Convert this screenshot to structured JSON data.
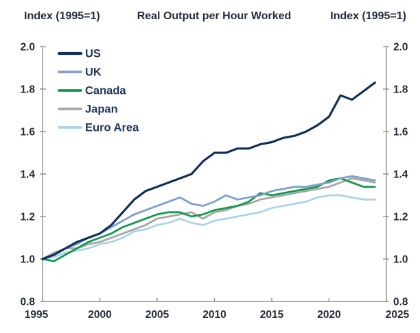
{
  "chart_data": {
    "type": "line",
    "title": "Real Output per Hour Worked",
    "index_label_left": "Index (1995=1)",
    "index_label_right": "Index (1995=1)",
    "xlim": [
      1995,
      2025
    ],
    "ylim": [
      0.8,
      2.0
    ],
    "xticks": [
      1995,
      2000,
      2005,
      2010,
      2015,
      2020,
      2025
    ],
    "yticks": [
      0.8,
      1.0,
      1.2,
      1.4,
      1.6,
      1.8,
      2.0
    ],
    "grid": false,
    "legend_position": "top-left",
    "axis_color": "#8f8f8f",
    "text_color": "#252b3a",
    "legend_text_color": "#1e355e",
    "x": [
      1995,
      1996,
      1997,
      1998,
      1999,
      2000,
      2001,
      2002,
      2003,
      2004,
      2005,
      2006,
      2007,
      2008,
      2009,
      2010,
      2011,
      2012,
      2013,
      2014,
      2015,
      2016,
      2017,
      2018,
      2019,
      2020,
      2021,
      2022,
      2023,
      2024
    ],
    "series": [
      {
        "name": "US",
        "color": "#103059",
        "line_width": 3.2,
        "values": [
          1.0,
          1.02,
          1.05,
          1.08,
          1.1,
          1.12,
          1.16,
          1.22,
          1.28,
          1.32,
          1.34,
          1.36,
          1.38,
          1.4,
          1.46,
          1.5,
          1.5,
          1.52,
          1.52,
          1.54,
          1.55,
          1.57,
          1.58,
          1.6,
          1.63,
          1.67,
          1.77,
          1.75,
          1.79,
          1.83
        ]
      },
      {
        "name": "UK",
        "color": "#7d9fcb",
        "line_width": 2.8,
        "values": [
          1.0,
          1.02,
          1.05,
          1.07,
          1.1,
          1.12,
          1.15,
          1.18,
          1.21,
          1.23,
          1.25,
          1.27,
          1.29,
          1.26,
          1.25,
          1.27,
          1.3,
          1.28,
          1.29,
          1.3,
          1.32,
          1.33,
          1.34,
          1.34,
          1.35,
          1.36,
          1.38,
          1.39,
          1.38,
          1.37
        ]
      },
      {
        "name": "Canada",
        "color": "#109a4b",
        "line_width": 2.8,
        "values": [
          1.0,
          0.99,
          1.02,
          1.05,
          1.08,
          1.1,
          1.12,
          1.15,
          1.17,
          1.19,
          1.21,
          1.22,
          1.22,
          1.2,
          1.21,
          1.23,
          1.24,
          1.25,
          1.27,
          1.31,
          1.3,
          1.31,
          1.32,
          1.33,
          1.34,
          1.37,
          1.38,
          1.36,
          1.34,
          1.34
        ]
      },
      {
        "name": "Japan",
        "color": "#a6a6a6",
        "line_width": 2.8,
        "values": [
          1.0,
          1.03,
          1.05,
          1.05,
          1.07,
          1.08,
          1.1,
          1.12,
          1.14,
          1.16,
          1.19,
          1.2,
          1.21,
          1.22,
          1.19,
          1.22,
          1.23,
          1.25,
          1.26,
          1.28,
          1.29,
          1.3,
          1.31,
          1.32,
          1.33,
          1.34,
          1.36,
          1.38,
          1.37,
          1.36
        ]
      },
      {
        "name": "Euro Area",
        "color": "#aad2f0",
        "line_width": 2.8,
        "values": [
          1.0,
          1.01,
          1.03,
          1.04,
          1.05,
          1.07,
          1.08,
          1.1,
          1.13,
          1.14,
          1.16,
          1.17,
          1.19,
          1.17,
          1.16,
          1.18,
          1.19,
          1.2,
          1.21,
          1.22,
          1.24,
          1.25,
          1.26,
          1.27,
          1.29,
          1.3,
          1.3,
          1.29,
          1.28,
          1.28
        ]
      }
    ]
  }
}
